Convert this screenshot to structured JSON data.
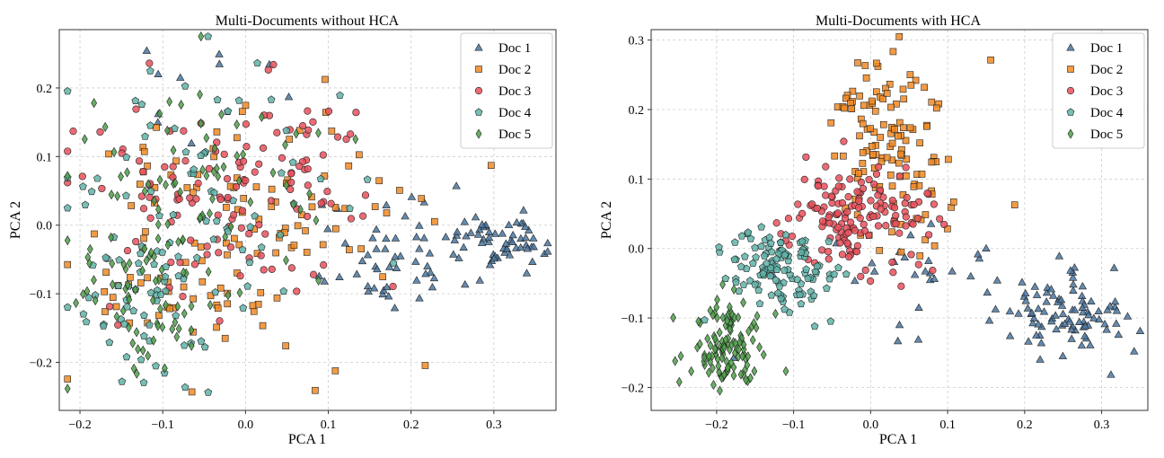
{
  "chart_data": [
    {
      "type": "scatter",
      "title": "Multi-Documents without HCA",
      "xlabel": "PCA 1",
      "ylabel": "PCA 2",
      "xlim": [
        -0.225,
        0.375
      ],
      "ylim": [
        -0.27,
        0.285
      ],
      "xticks": [
        -0.2,
        -0.1,
        0.0,
        0.1,
        0.2,
        0.3
      ],
      "xtick_labels": [
        "−0.2",
        "−0.1",
        "0.0",
        "0.1",
        "0.2",
        "0.3"
      ],
      "yticks": [
        -0.2,
        -0.1,
        0.0,
        0.1,
        0.2
      ],
      "ytick_labels": [
        "−0.2",
        "−0.1",
        "0.0",
        "0.1",
        "0.2"
      ],
      "grid": true,
      "legend_position": "top-right",
      "series": [
        {
          "name": "Doc 1",
          "marker": "triangle",
          "color": "#4a76a0",
          "clusters": [
            {
              "cx": 0.31,
              "cy": -0.02,
              "sx": 0.03,
              "sy": 0.02,
              "n": 55
            },
            {
              "cx": 0.17,
              "cy": -0.05,
              "sx": 0.05,
              "sy": 0.04,
              "n": 55
            },
            {
              "cx": -0.07,
              "cy": 0.19,
              "sx": 0.07,
              "sy": 0.05,
              "n": 10
            }
          ]
        },
        {
          "name": "Doc 2",
          "marker": "square",
          "color": "#f08a24",
          "clusters": [
            {
              "cx": 0.0,
              "cy": 0.0,
              "sx": 0.1,
              "sy": 0.1,
              "n": 110
            },
            {
              "cx": -0.1,
              "cy": -0.12,
              "sx": 0.06,
              "sy": 0.05,
              "n": 20
            }
          ]
        },
        {
          "name": "Doc 3",
          "marker": "circle",
          "color": "#e8505b",
          "clusters": [
            {
              "cx": -0.02,
              "cy": 0.05,
              "sx": 0.09,
              "sy": 0.08,
              "n": 130
            }
          ]
        },
        {
          "name": "Doc 4",
          "marker": "pentagon",
          "color": "#5fb3a8",
          "clusters": [
            {
              "cx": -0.12,
              "cy": -0.12,
              "sx": 0.05,
              "sy": 0.06,
              "n": 55
            },
            {
              "cx": -0.05,
              "cy": 0.05,
              "sx": 0.09,
              "sy": 0.1,
              "n": 65
            }
          ]
        },
        {
          "name": "Doc 5",
          "marker": "diamond",
          "color": "#4fa04a",
          "clusters": [
            {
              "cx": -0.12,
              "cy": -0.1,
              "sx": 0.05,
              "sy": 0.07,
              "n": 70
            },
            {
              "cx": -0.03,
              "cy": 0.08,
              "sx": 0.08,
              "sy": 0.07,
              "n": 60
            }
          ]
        }
      ]
    },
    {
      "type": "scatter",
      "title": "Multi-Documents with HCA",
      "xlabel": "PCA 1",
      "ylabel": "PCA 2",
      "xlim": [
        -0.285,
        0.36
      ],
      "ylim": [
        -0.233,
        0.315
      ],
      "xticks": [
        -0.2,
        -0.1,
        0.0,
        0.1,
        0.2,
        0.3
      ],
      "xtick_labels": [
        "−0.2",
        "−0.1",
        "0.0",
        "0.1",
        "0.2",
        "0.3"
      ],
      "yticks": [
        -0.2,
        -0.1,
        0.0,
        0.1,
        0.2,
        0.3
      ],
      "ytick_labels": [
        "−0.2",
        "−0.1",
        "0.0",
        "0.1",
        "0.2",
        "0.3"
      ],
      "grid": true,
      "legend_position": "top-right",
      "series": [
        {
          "name": "Doc 1",
          "marker": "triangle",
          "color": "#4a76a0",
          "clusters": [
            {
              "cx": 0.25,
              "cy": -0.1,
              "sx": 0.04,
              "sy": 0.03,
              "n": 90
            },
            {
              "cx": 0.05,
              "cy": -0.05,
              "sx": 0.07,
              "sy": 0.04,
              "n": 30
            }
          ]
        },
        {
          "name": "Doc 2",
          "marker": "square",
          "color": "#f08a24",
          "clusters": [
            {
              "cx": 0.02,
              "cy": 0.17,
              "sx": 0.04,
              "sy": 0.06,
              "n": 110
            },
            {
              "cx": 0.05,
              "cy": 0.06,
              "sx": 0.04,
              "sy": 0.03,
              "n": 20
            }
          ]
        },
        {
          "name": "Doc 3",
          "marker": "circle",
          "color": "#e8505b",
          "clusters": [
            {
              "cx": -0.01,
              "cy": 0.05,
              "sx": 0.05,
              "sy": 0.04,
              "n": 150
            }
          ]
        },
        {
          "name": "Doc 4",
          "marker": "pentagon",
          "color": "#5fb3a8",
          "clusters": [
            {
              "cx": -0.12,
              "cy": -0.03,
              "sx": 0.04,
              "sy": 0.03,
              "n": 120
            }
          ]
        },
        {
          "name": "Doc 5",
          "marker": "diamond",
          "color": "#4fa04a",
          "clusters": [
            {
              "cx": -0.19,
              "cy": -0.14,
              "sx": 0.025,
              "sy": 0.03,
              "n": 120
            }
          ]
        }
      ]
    }
  ]
}
